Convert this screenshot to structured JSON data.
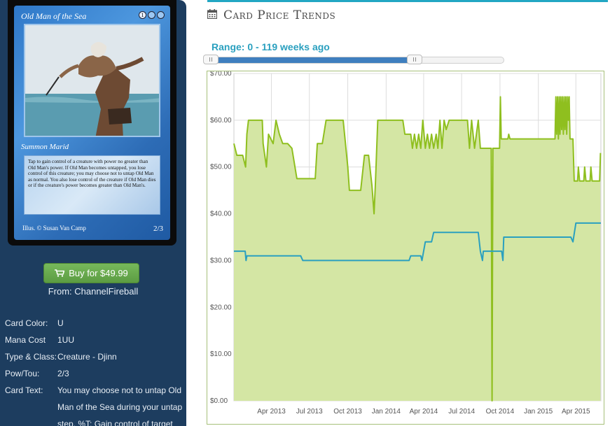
{
  "card": {
    "name": "Old Man of the Sea",
    "mana_symbols": [
      "1",
      "U",
      "U"
    ],
    "type_line": "Summon Marid",
    "rules_text": "Tap to gain control of a creature with power no greater than Old Man's power. If Old Man becomes untapped, you lose control of this creature; you may choose not to untap Old Man as normal. You also lose control of the creature if Old Man dies or if the creature's power becomes greater than Old Man's.",
    "illustrator": "Illus. © Susan Van Camp",
    "power_toughness": "2/3"
  },
  "buy": {
    "label": "Buy for $49.99",
    "icon": "cart-icon",
    "from": "From: ChannelFireball"
  },
  "attributes": [
    {
      "label": "Card Color:",
      "value": "U"
    },
    {
      "label": "Mana Cost",
      "value": "1UU"
    },
    {
      "label": "Type & Class:",
      "value": "Creature - Djinn"
    },
    {
      "label": "Pow/Tou:",
      "value": "2/3"
    },
    {
      "label": "Card Text:",
      "value": "You may choose not to untap Old Man of the Sea during your untap step. %T: Gain control of target"
    }
  ],
  "section": {
    "title": "Card Price Trends",
    "icon": "calendar-icon"
  },
  "range": {
    "label": "Range: 0 - 119 weeks ago",
    "min": 0,
    "max": 119
  },
  "colors": {
    "accent": "#22a7c3",
    "green_series": "#8fbf1f",
    "green_fill": "#d4e6a4",
    "blue_series": "#2aa0bf",
    "button": "#5c9c42"
  },
  "chart_data": {
    "type": "line",
    "y_tick_labels": [
      "$70.00",
      "$60.00",
      "$50.00",
      "$40.00",
      "$30.00",
      "$20.00",
      "$10.00",
      "$0.00"
    ],
    "ylim": [
      0,
      70
    ],
    "x_tick_labels": [
      "Apr 2013",
      "Jul 2013",
      "Oct 2013",
      "Jan 2014",
      "Apr 2014",
      "Jul 2014",
      "Oct 2014",
      "Jan 2015",
      "Apr 2015"
    ],
    "x_ticks": [
      "2013-04-01",
      "2013-07-01",
      "2013-10-01",
      "2014-01-01",
      "2014-04-01",
      "2014-07-01",
      "2014-10-01",
      "2015-01-01",
      "2015-04-01"
    ],
    "xlim": [
      "2013-01-01",
      "2015-05-31"
    ],
    "grid": true,
    "series": [
      {
        "color": "#8fbf1f",
        "fill": true,
        "points": [
          [
            "2013-01-01",
            55
          ],
          [
            "2013-01-08",
            52.5
          ],
          [
            "2013-01-22",
            52.5
          ],
          [
            "2013-01-29",
            50
          ],
          [
            "2013-02-01",
            57
          ],
          [
            "2013-02-05",
            60
          ],
          [
            "2013-03-10",
            60
          ],
          [
            "2013-03-12",
            55
          ],
          [
            "2013-03-20",
            50
          ],
          [
            "2013-03-25",
            57
          ],
          [
            "2013-04-05",
            55
          ],
          [
            "2013-04-12",
            60
          ],
          [
            "2013-04-20",
            57
          ],
          [
            "2013-04-28",
            55
          ],
          [
            "2013-05-10",
            55
          ],
          [
            "2013-05-20",
            54
          ],
          [
            "2013-06-01",
            47.5
          ],
          [
            "2013-07-15",
            47.5
          ],
          [
            "2013-07-20",
            55
          ],
          [
            "2013-08-01",
            55
          ],
          [
            "2013-08-10",
            60
          ],
          [
            "2013-09-20",
            60
          ],
          [
            "2013-10-01",
            50
          ],
          [
            "2013-10-05",
            45
          ],
          [
            "2013-11-01",
            45
          ],
          [
            "2013-11-10",
            52.5
          ],
          [
            "2013-11-20",
            52.5
          ],
          [
            "2013-11-28",
            46
          ],
          [
            "2013-12-03",
            40
          ],
          [
            "2013-12-06",
            46
          ],
          [
            "2013-12-12",
            60
          ],
          [
            "2014-02-10",
            60
          ],
          [
            "2014-02-15",
            57
          ],
          [
            "2014-03-01",
            57
          ],
          [
            "2014-03-05",
            54
          ],
          [
            "2014-03-10",
            57
          ],
          [
            "2014-03-15",
            54
          ],
          [
            "2014-03-20",
            57
          ],
          [
            "2014-03-25",
            54
          ],
          [
            "2014-03-30",
            60
          ],
          [
            "2014-04-05",
            54
          ],
          [
            "2014-04-10",
            57
          ],
          [
            "2014-04-15",
            54
          ],
          [
            "2014-04-20",
            57
          ],
          [
            "2014-04-25",
            54
          ],
          [
            "2014-05-01",
            57
          ],
          [
            "2014-05-05",
            54
          ],
          [
            "2014-05-10",
            60
          ],
          [
            "2014-05-15",
            54
          ],
          [
            "2014-05-20",
            60
          ],
          [
            "2014-05-25",
            58
          ],
          [
            "2014-06-01",
            60
          ],
          [
            "2014-07-15",
            60
          ],
          [
            "2014-07-20",
            54
          ],
          [
            "2014-07-25",
            60
          ],
          [
            "2014-08-01",
            54
          ],
          [
            "2014-08-10",
            60
          ],
          [
            "2014-08-15",
            54
          ],
          [
            "2014-09-10",
            54
          ],
          [
            "2014-09-12",
            0
          ],
          [
            "2014-09-14",
            54
          ],
          [
            "2014-09-30",
            54
          ],
          [
            "2014-10-02",
            65
          ],
          [
            "2014-10-04",
            56
          ],
          [
            "2014-10-20",
            56
          ],
          [
            "2014-10-22",
            57
          ],
          [
            "2014-10-25",
            56
          ],
          [
            "2015-02-10",
            56
          ],
          [
            "2015-02-12",
            65
          ],
          [
            "2015-02-14",
            57
          ],
          [
            "2015-02-16",
            65
          ],
          [
            "2015-02-18",
            56
          ],
          [
            "2015-02-20",
            65
          ],
          [
            "2015-02-22",
            57
          ],
          [
            "2015-02-24",
            65
          ],
          [
            "2015-02-26",
            58
          ],
          [
            "2015-02-28",
            65
          ],
          [
            "2015-03-02",
            57
          ],
          [
            "2015-03-04",
            65
          ],
          [
            "2015-03-06",
            58
          ],
          [
            "2015-03-08",
            65
          ],
          [
            "2015-03-10",
            57
          ],
          [
            "2015-03-12",
            65
          ],
          [
            "2015-03-14",
            60
          ],
          [
            "2015-03-16",
            65
          ],
          [
            "2015-03-18",
            56
          ],
          [
            "2015-03-25",
            56
          ],
          [
            "2015-03-28",
            47
          ],
          [
            "2015-04-05",
            47
          ],
          [
            "2015-04-07",
            50
          ],
          [
            "2015-04-10",
            47
          ],
          [
            "2015-04-20",
            47
          ],
          [
            "2015-04-22",
            50
          ],
          [
            "2015-04-25",
            47
          ],
          [
            "2015-05-05",
            47
          ],
          [
            "2015-05-07",
            50
          ],
          [
            "2015-05-10",
            47
          ],
          [
            "2015-05-28",
            47
          ],
          [
            "2015-05-30",
            53
          ]
        ]
      },
      {
        "color": "#2aa0bf",
        "fill": false,
        "points": [
          [
            "2013-01-01",
            32
          ],
          [
            "2013-01-28",
            32
          ],
          [
            "2013-01-30",
            30
          ],
          [
            "2013-02-01",
            31
          ],
          [
            "2013-06-10",
            31
          ],
          [
            "2013-06-15",
            30
          ],
          [
            "2014-02-25",
            30
          ],
          [
            "2014-03-01",
            31
          ],
          [
            "2014-03-25",
            31
          ],
          [
            "2014-03-28",
            30
          ],
          [
            "2014-04-01",
            32
          ],
          [
            "2014-04-05",
            34
          ],
          [
            "2014-04-20",
            34
          ],
          [
            "2014-04-25",
            36
          ],
          [
            "2014-08-10",
            36
          ],
          [
            "2014-08-15",
            32
          ],
          [
            "2014-08-20",
            30
          ],
          [
            "2014-08-22",
            32
          ],
          [
            "2014-10-05",
            32
          ],
          [
            "2014-10-08",
            30
          ],
          [
            "2014-10-10",
            35
          ],
          [
            "2015-03-20",
            35
          ],
          [
            "2015-03-25",
            34
          ],
          [
            "2015-04-01",
            38
          ],
          [
            "2015-05-31",
            38
          ]
        ]
      }
    ]
  }
}
